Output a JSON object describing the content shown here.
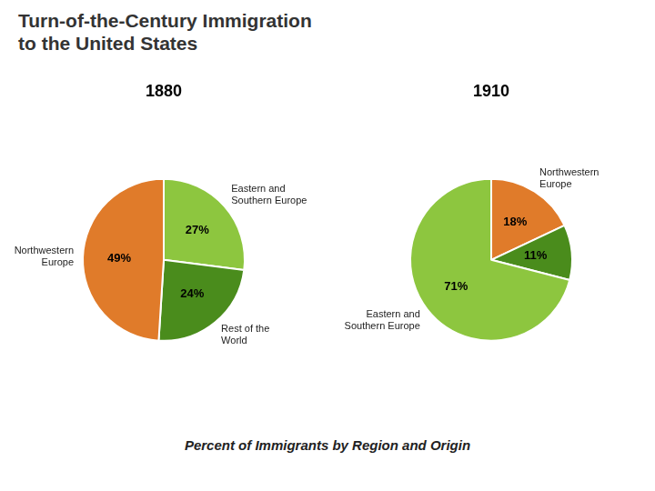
{
  "title": [
    "Turn-of-the-Century Immigration",
    "to the United States"
  ],
  "annotations": [
    "Percent of Immigrants by Region and Origin"
  ],
  "chart_data": [
    {
      "type": "pie",
      "title": "1880",
      "categories": [
        "Eastern and\nSouthern Europe",
        "Rest of the\nWorld",
        "Northwestern\nEurope"
      ],
      "values": [
        27,
        24,
        49
      ],
      "value_labels": [
        "27%",
        "24%",
        "49%"
      ],
      "colors": [
        "#8dc63f",
        "#4a8c1c",
        "#e07b2a"
      ],
      "data_labels": true
    },
    {
      "type": "pie",
      "title": "1910",
      "categories": [
        "Northwestern\nEurope",
        null,
        "Eastern and\nSouthern Europe"
      ],
      "values": [
        18,
        11,
        71
      ],
      "value_labels": [
        "18%",
        "11%",
        "71%"
      ],
      "colors": [
        "#e07b2a",
        "#4a8c1c",
        "#8dc63f"
      ],
      "data_labels": true
    }
  ]
}
